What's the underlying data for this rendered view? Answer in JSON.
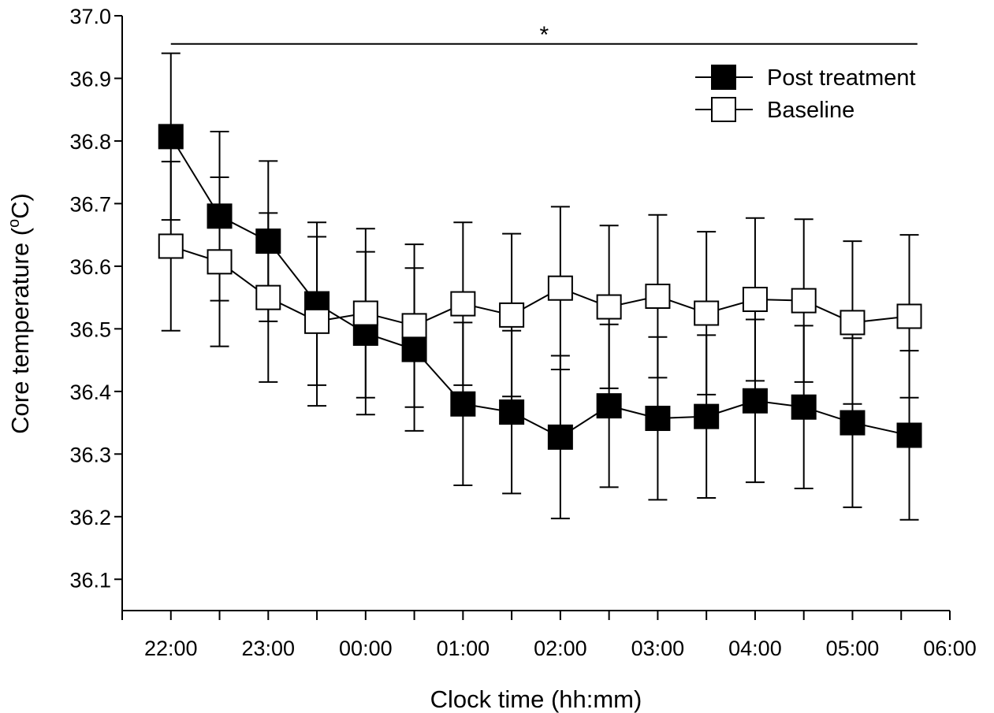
{
  "chart_data": {
    "type": "line",
    "title": "",
    "xlabel": "Clock time (hh:mm)",
    "ylabel_prefix": "Core temperature (",
    "ylabel_sup": "o",
    "ylabel_suffix": "C)",
    "xlim": [
      "21:30",
      "06:00"
    ],
    "ylim": [
      36.05,
      37.0
    ],
    "y_ticks": [
      "36.1",
      "36.2",
      "36.3",
      "36.4",
      "36.5",
      "36.6",
      "36.7",
      "36.8",
      "36.9",
      "37.0"
    ],
    "x_tick_labels": [
      "22:00",
      "23:00",
      "00:00",
      "01:00",
      "02:00",
      "03:00",
      "04:00",
      "05:00",
      "06:00"
    ],
    "x_minor_ticks": [
      "21:30",
      "22:30",
      "23:30",
      "00:30",
      "01:30",
      "02:30",
      "03:30",
      "04:30",
      "05:30"
    ],
    "grid": false,
    "legend_position": "top-right",
    "x": [
      "22:00",
      "22:30",
      "23:00",
      "23:30",
      "00:00",
      "00:30",
      "01:00",
      "01:30",
      "02:00",
      "02:30",
      "03:00",
      "03:30",
      "04:00",
      "04:30",
      "05:00",
      "05:35"
    ],
    "series": [
      {
        "name": "Post treatment",
        "marker": "filled-square",
        "color": "#000000",
        "values": [
          36.807,
          36.68,
          36.64,
          36.54,
          36.493,
          36.467,
          36.38,
          36.367,
          36.327,
          36.377,
          36.357,
          36.36,
          36.385,
          36.375,
          36.35,
          36.33
        ],
        "error": [
          0.133,
          0.135,
          0.128,
          0.13,
          0.13,
          0.13,
          0.13,
          0.13,
          0.13,
          0.13,
          0.13,
          0.13,
          0.13,
          0.13,
          0.135,
          0.135
        ]
      },
      {
        "name": "Baseline",
        "marker": "open-square",
        "color": "#000000",
        "values": [
          36.632,
          36.607,
          36.55,
          36.512,
          36.525,
          36.505,
          36.54,
          36.522,
          36.565,
          36.535,
          36.552,
          36.525,
          36.547,
          36.545,
          36.51,
          36.52
        ],
        "error": [
          0.135,
          0.135,
          0.135,
          0.135,
          0.135,
          0.13,
          0.13,
          0.13,
          0.13,
          0.13,
          0.13,
          0.13,
          0.13,
          0.13,
          0.13,
          0.13
        ]
      }
    ],
    "annotations": [
      {
        "text": "*",
        "type": "significance-bar",
        "y": 36.955,
        "x_from": "22:00",
        "x_to": "05:40"
      }
    ]
  }
}
